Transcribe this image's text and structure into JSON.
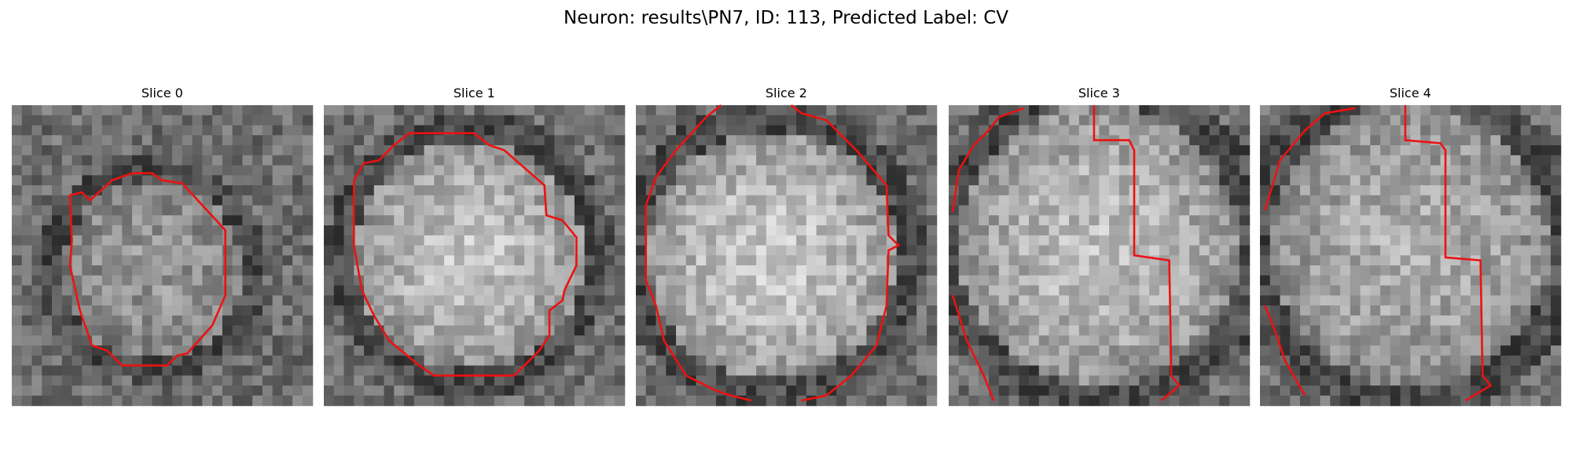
{
  "title": "Neuron: results\\PN7, ID: 113, Predicted Label: CV",
  "panels": [
    {
      "title": "Slice 0"
    },
    {
      "title": "Slice 1"
    },
    {
      "title": "Slice 2"
    },
    {
      "title": "Slice 3"
    },
    {
      "title": "Slice 4"
    }
  ]
}
